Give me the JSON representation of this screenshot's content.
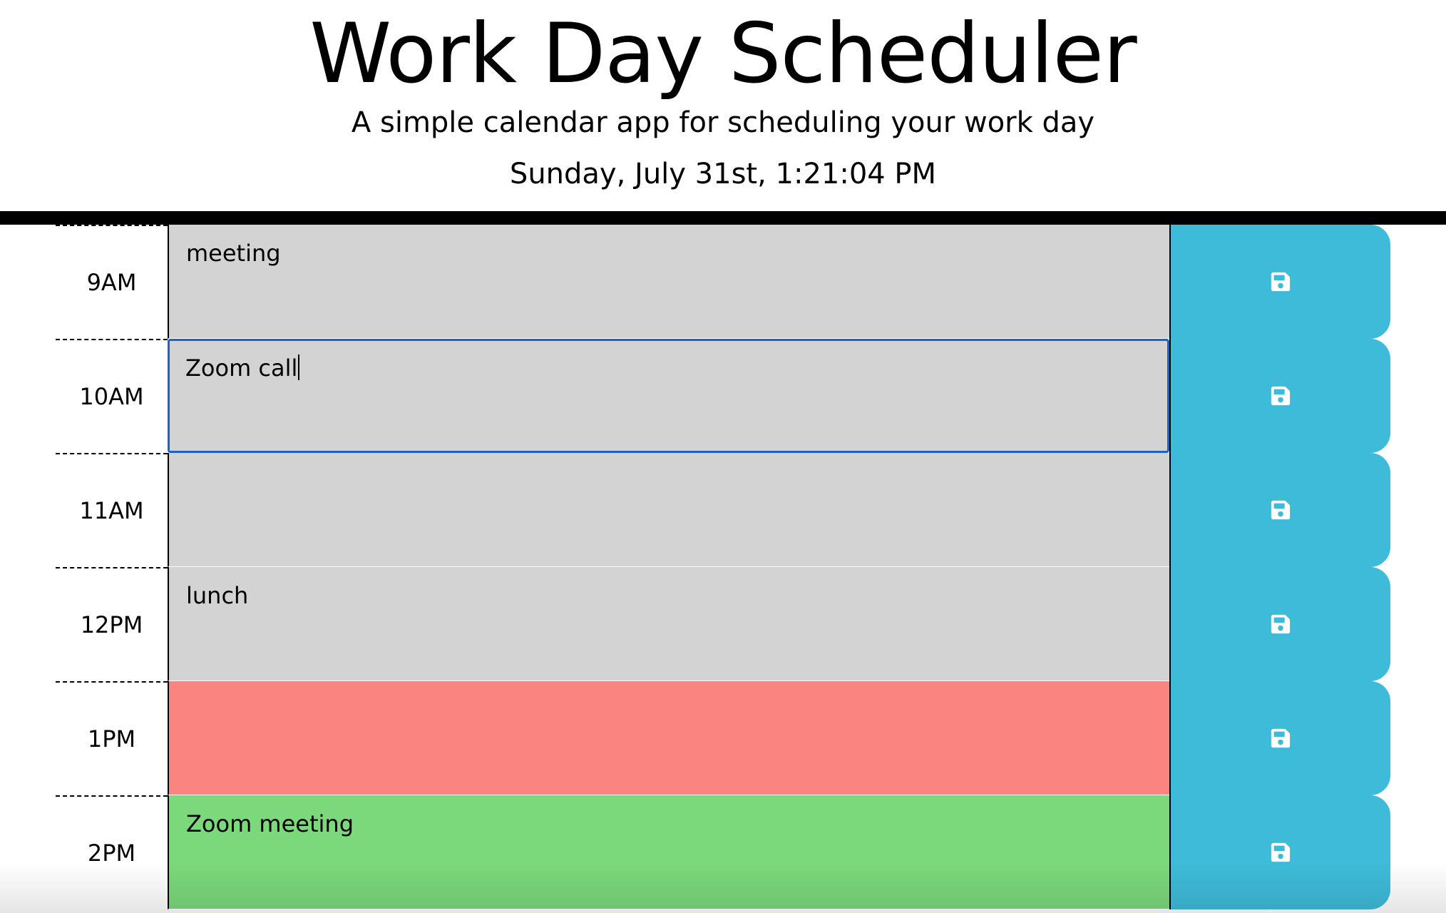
{
  "header": {
    "title": "Work Day Scheduler",
    "subtitle": "A simple calendar app for scheduling your work day",
    "current_day": "Sunday, July 31st, 1:21:04 PM"
  },
  "colors": {
    "past": "#d3d3d3",
    "present": "#fa8580",
    "future": "#7bd87b",
    "save_button": "#3ebbd9",
    "focus_border": "#1a63c9"
  },
  "save_icon": "floppy-disk-icon",
  "time_blocks": [
    {
      "hour": "9AM",
      "text": "meeting",
      "state": "past"
    },
    {
      "hour": "10AM",
      "text": "Zoom call",
      "state": "past"
    },
    {
      "hour": "11AM",
      "text": "",
      "state": "past"
    },
    {
      "hour": "12PM",
      "text": "lunch",
      "state": "past"
    },
    {
      "hour": "1PM",
      "text": "",
      "state": "present"
    },
    {
      "hour": "2PM",
      "text": "Zoom meeting",
      "state": "future"
    }
  ]
}
